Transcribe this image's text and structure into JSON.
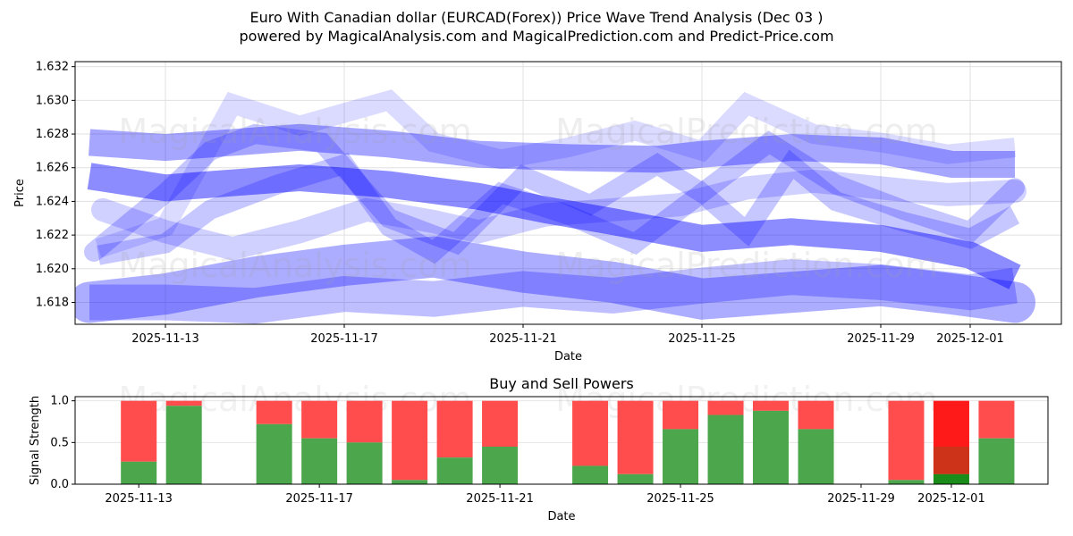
{
  "title_line1": "Euro With Canadian dollar (EURCAD(Forex)) Price Wave Trend Analysis (Dec 03 )",
  "title_line2": "powered by MagicalAnalysis.com and MagicalPrediction.com and Predict-Price.com",
  "watermarks": [
    "MagicalAnalysis.com",
    "MagicalPrediction.com"
  ],
  "chart_data": [
    {
      "type": "line",
      "title": "Price Wave Trend",
      "xlabel": "Date",
      "ylabel": "Price",
      "x_ticks": [
        "2025-11-13",
        "2025-11-17",
        "2025-11-21",
        "2025-11-25",
        "2025-11-29",
        "2025-12-01"
      ],
      "x_tick_days": [
        0,
        4,
        8,
        12,
        16,
        18
      ],
      "xlim_days": [
        -2.02,
        20.04
      ],
      "y_ticks": [
        "1.618",
        "1.620",
        "1.622",
        "1.624",
        "1.626",
        "1.628",
        "1.630",
        "1.632"
      ],
      "ylim": [
        1.6167,
        1.6323
      ],
      "grid": true,
      "color": "#0000ff",
      "series": [
        {
          "name": "wave-1",
          "x": [
            -1.7,
            0,
            2,
            4,
            6,
            8,
            10,
            12,
            14,
            16,
            17.6,
            19
          ],
          "y": [
            1.618,
            1.6185,
            1.6195,
            1.6202,
            1.6207,
            1.6198,
            1.6192,
            1.6182,
            1.6186,
            1.619,
            1.6185,
            1.618
          ]
        },
        {
          "name": "wave-2",
          "x": [
            -1.7,
            0,
            3,
            5,
            7,
            8.5,
            10,
            12,
            14,
            16,
            18,
            19
          ],
          "y": [
            1.6255,
            1.6248,
            1.6254,
            1.625,
            1.6243,
            1.6235,
            1.6228,
            1.6218,
            1.6222,
            1.6218,
            1.6208,
            1.6195
          ]
        },
        {
          "name": "wave-3",
          "x": [
            -1.7,
            0,
            3,
            5,
            7,
            9,
            11,
            12,
            14,
            16,
            17.6,
            19
          ],
          "y": [
            1.6275,
            1.6272,
            1.6278,
            1.6274,
            1.6268,
            1.6266,
            1.6265,
            1.6268,
            1.6272,
            1.627,
            1.6262,
            1.6262
          ]
        },
        {
          "name": "wave-4",
          "x": [
            -1.6,
            0,
            1,
            2,
            3.5,
            5,
            6.5,
            8,
            9.5,
            11,
            12,
            13.5,
            15,
            16.5,
            18,
            19
          ],
          "y": [
            1.621,
            1.6245,
            1.627,
            1.628,
            1.6275,
            1.623,
            1.6215,
            1.6255,
            1.6238,
            1.6262,
            1.6245,
            1.6275,
            1.625,
            1.6235,
            1.6222,
            1.6248
          ]
        },
        {
          "name": "wave-5",
          "x": [
            -1.5,
            0,
            1.5,
            3,
            5,
            6,
            7.5,
            9,
            10.5,
            12,
            13,
            14.5,
            16,
            17.5,
            19
          ],
          "y": [
            1.6212,
            1.6225,
            1.6298,
            1.6285,
            1.63,
            1.6275,
            1.6265,
            1.6272,
            1.6282,
            1.627,
            1.6298,
            1.628,
            1.6275,
            1.6268,
            1.6272
          ]
        },
        {
          "name": "wave-6",
          "x": [
            -1.5,
            0,
            1,
            2.5,
            4,
            5,
            6,
            7.5,
            9,
            10.5,
            12,
            13,
            14,
            15,
            16.5,
            18,
            19
          ],
          "y": [
            1.6208,
            1.6215,
            1.6235,
            1.625,
            1.6262,
            1.6225,
            1.621,
            1.6245,
            1.6232,
            1.6215,
            1.6245,
            1.6222,
            1.6262,
            1.624,
            1.6228,
            1.6218,
            1.6232
          ]
        },
        {
          "name": "wave-7",
          "x": [
            -1.4,
            0,
            1.5,
            3,
            4.5,
            6,
            7,
            8.5,
            10,
            11.5,
            13,
            14.5,
            16,
            17.5,
            19
          ],
          "y": [
            1.6235,
            1.6222,
            1.6212,
            1.6222,
            1.6235,
            1.6228,
            1.6222,
            1.6232,
            1.6235,
            1.6238,
            1.6248,
            1.6252,
            1.6248,
            1.6244,
            1.6246
          ]
        },
        {
          "name": "wave-8",
          "x": [
            -1.7,
            0,
            2,
            4,
            6,
            8,
            10,
            12,
            14,
            16,
            18,
            19
          ],
          "y": [
            1.618,
            1.618,
            1.6178,
            1.6185,
            1.6182,
            1.6188,
            1.6184,
            1.619,
            1.6195,
            1.6192,
            1.6186,
            1.619
          ]
        }
      ]
    },
    {
      "type": "bar",
      "title": "Buy and Sell Powers",
      "xlabel": "Date",
      "ylabel": "Signal Strength",
      "x_ticks": [
        "2025-11-13",
        "2025-11-17",
        "2025-11-21",
        "2025-11-25",
        "2025-11-29",
        "2025-12-01"
      ],
      "x_tick_days": [
        0,
        4,
        8,
        12,
        16,
        18
      ],
      "xlim_days": [
        -1.41,
        20.14
      ],
      "y_ticks": [
        "0.0",
        "0.5",
        "1.0"
      ],
      "ylim": [
        0,
        1.05
      ],
      "buy_color": "#4ca64c",
      "sell_color": "#ff4c4c",
      "highlight_sell_color": "#ff1a1a",
      "highlight_mid_color": "#cc3318",
      "highlight_buy_color": "#1a8c1a",
      "categories": [
        "2025-11-13",
        "2025-11-14",
        "2025-11-16",
        "2025-11-17",
        "2025-11-18",
        "2025-11-19",
        "2025-11-20",
        "2025-11-21",
        "2025-11-23",
        "2025-11-24",
        "2025-11-25",
        "2025-11-26",
        "2025-11-27",
        "2025-11-28",
        "2025-11-30",
        "2025-12-01",
        "2025-12-02"
      ],
      "days": [
        0,
        1,
        3,
        4,
        5,
        6,
        7,
        8,
        10,
        11,
        12,
        13,
        14,
        15,
        17,
        18,
        19
      ],
      "buy": [
        0.27,
        0.94,
        0.72,
        0.55,
        0.5,
        0.05,
        0.32,
        0.45,
        0.22,
        0.12,
        0.66,
        0.83,
        0.88,
        0.66,
        0.05,
        0.12,
        0.55
      ],
      "sell": [
        0.73,
        0.06,
        0.28,
        0.45,
        0.5,
        0.95,
        0.68,
        0.55,
        0.78,
        0.88,
        0.34,
        0.17,
        0.12,
        0.34,
        0.95,
        0.88,
        0.45
      ],
      "highlight": {
        "category": "2025-12-01",
        "mid_level": 0.45
      }
    }
  ]
}
